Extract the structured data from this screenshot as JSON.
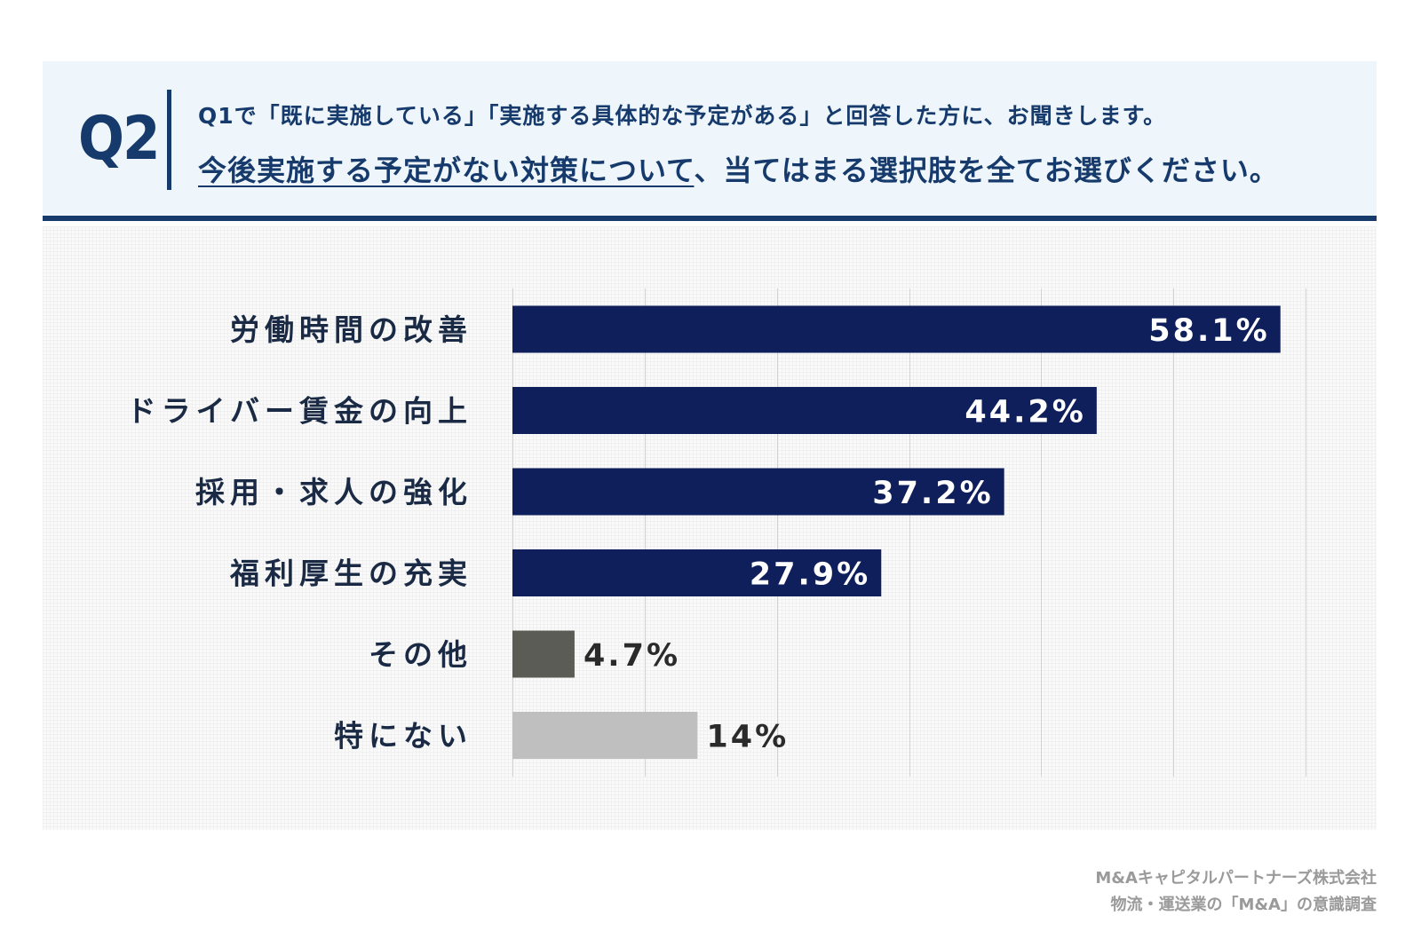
{
  "question": {
    "label": "Q2",
    "line1": "Q1で「既に実施している」「実施する具体的な予定がある」と回答した方に、お聞きします。",
    "line2_emphasis": "今後実施する予定がない対策について",
    "line2_rest": "、当てはまる選択肢を全てお選びください。"
  },
  "chart_data": {
    "type": "bar",
    "orientation": "horizontal",
    "categories": [
      "労働時間の改善",
      "ドライバー賃金の向上",
      "採用・求人の強化",
      "福利厚生の充実",
      "その他",
      "特にない"
    ],
    "values": [
      58.1,
      44.2,
      37.2,
      27.9,
      4.7,
      14
    ],
    "value_labels": [
      "58.1%",
      "44.2%",
      "37.2%",
      "27.9%",
      "4.7%",
      "14%"
    ],
    "bar_colors": [
      "#0e1f5b",
      "#0e1f5b",
      "#0e1f5b",
      "#0e1f5b",
      "#5c5c56",
      "#bfbfbf"
    ],
    "label_inside": [
      true,
      true,
      true,
      true,
      false,
      false
    ],
    "xlim": [
      0,
      60
    ],
    "grid": true,
    "gridline_step": 10,
    "title": "",
    "xlabel": "",
    "ylabel": ""
  },
  "footer": {
    "line1": "M&Aキャピタルパートナーズ株式会社",
    "line2": "物流・運送業の「M&A」の意識調査"
  }
}
